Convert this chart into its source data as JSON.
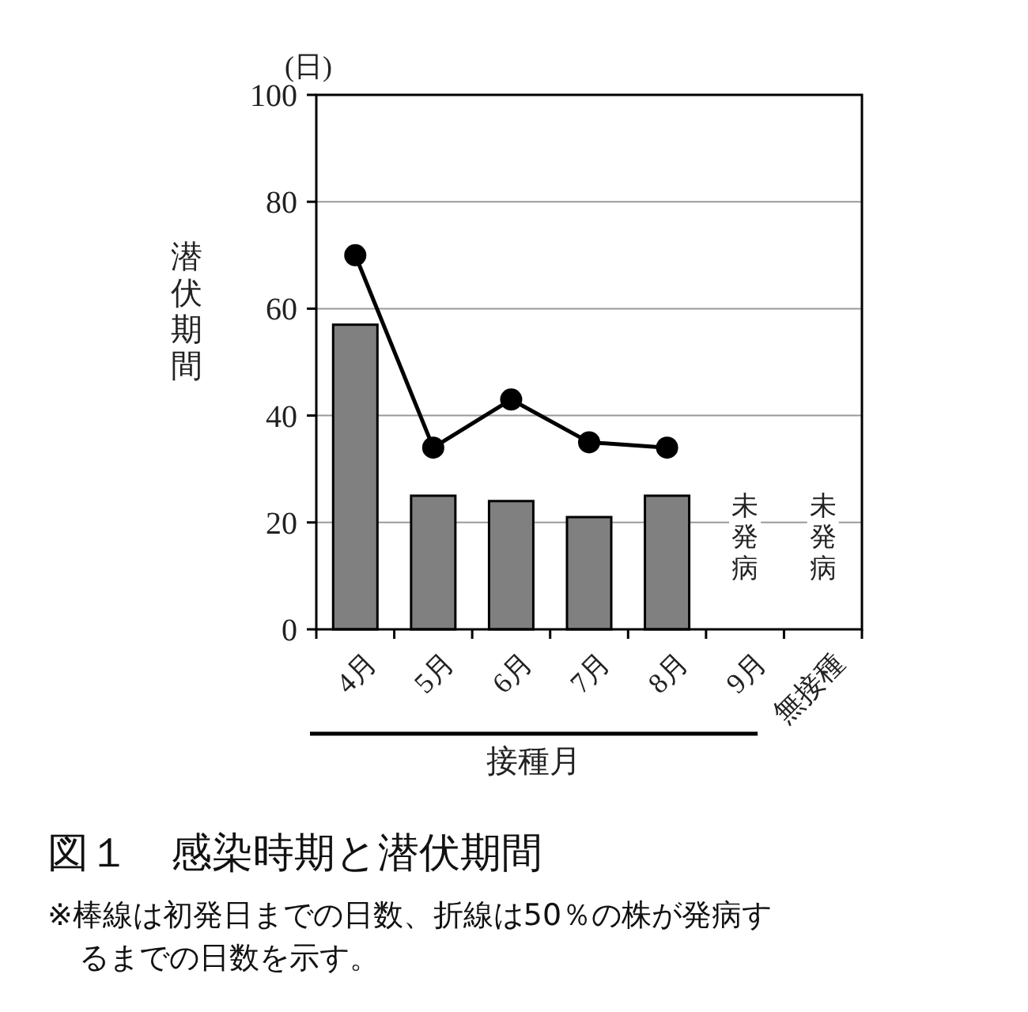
{
  "chart_data": {
    "type": "bar",
    "title": "図１　感染時期と潜伏期間",
    "xlabel": "接種月",
    "ylabel": "潜伏期間",
    "categories": [
      "4月",
      "5月",
      "6月",
      "7月",
      "8月",
      "9月",
      "無接種"
    ],
    "series": [
      {
        "color": "#808080",
        "values": [
          57,
          25,
          24,
          21,
          25,
          null,
          null
        ]
      },
      {
        "type": "line",
        "color": "#000000",
        "marker": "circle",
        "line_style": "solid",
        "values": [
          70,
          34,
          43,
          35,
          34,
          null,
          null
        ]
      }
    ],
    "ylim": [
      0,
      100
    ],
    "yticks": [
      0,
      20,
      40,
      60,
      80,
      100
    ],
    "grid": "y",
    "annotations": [
      "(日)",
      "未発病",
      "未発病",
      "※棒線は初発日までの日数、折線は50％の株が発病するまでの日数を示す。"
    ]
  }
}
